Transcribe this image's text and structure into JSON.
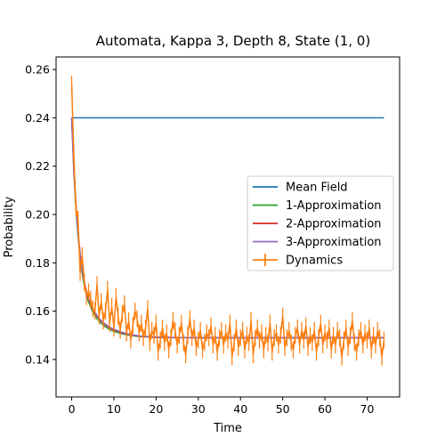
{
  "chart_data": {
    "type": "line",
    "title": "Automata, Kappa 3, Depth 8, State (1, 0)",
    "xlabel": "Time",
    "ylabel": "Probability",
    "xlim": [
      -3.7,
      77.7
    ],
    "ylim": [
      0.1245,
      0.2652
    ],
    "xticks": [
      0,
      10,
      20,
      30,
      40,
      50,
      60,
      70
    ],
    "yticks": [
      0.14,
      0.16,
      0.18,
      0.2,
      0.22,
      0.24,
      0.26
    ],
    "yticklabels": [
      "0.14",
      "0.16",
      "0.18",
      "0.20",
      "0.22",
      "0.24",
      "0.26"
    ],
    "legend_position": "right",
    "series": [
      {
        "name": "Mean Field",
        "color": "#1f77b4",
        "x": [
          0,
          74
        ],
        "y": [
          0.24,
          0.24
        ]
      },
      {
        "name": "1-Approximation",
        "color": "#2ca02c",
        "x": [
          0,
          0.5,
          1,
          1.5,
          2,
          2.5,
          3,
          3.5,
          4,
          5,
          6,
          7,
          8,
          9,
          10,
          12,
          14,
          16,
          18,
          20,
          25,
          30,
          35,
          40,
          50,
          60,
          74
        ],
        "y": [
          0.24,
          0.218,
          0.2025,
          0.191,
          0.182,
          0.1755,
          0.1705,
          0.1668,
          0.1638,
          0.1597,
          0.1569,
          0.1549,
          0.1535,
          0.1524,
          0.1516,
          0.1506,
          0.1499,
          0.1495,
          0.1493,
          0.1491,
          0.149,
          0.149,
          0.149,
          0.149,
          0.149,
          0.149,
          0.149
        ]
      },
      {
        "name": "2-Approximation",
        "color": "#d62728",
        "x": [
          0,
          0.5,
          1,
          1.5,
          2,
          2.5,
          3,
          3.5,
          4,
          5,
          6,
          7,
          8,
          9,
          10,
          12,
          14,
          16,
          18,
          20,
          25,
          30,
          35,
          40,
          50,
          60,
          74
        ],
        "y": [
          0.24,
          0.219,
          0.204,
          0.1925,
          0.1835,
          0.1768,
          0.1718,
          0.168,
          0.165,
          0.1608,
          0.1579,
          0.1558,
          0.1543,
          0.1531,
          0.1522,
          0.151,
          0.1502,
          0.1497,
          0.1494,
          0.1492,
          0.1491,
          0.149,
          0.149,
          0.149,
          0.149,
          0.149,
          0.149
        ]
      },
      {
        "name": "3-Approximation",
        "color": "#9467bd",
        "x": [
          0,
          0.5,
          1,
          1.5,
          2,
          2.5,
          3,
          3.5,
          4,
          5,
          6,
          7,
          8,
          9,
          10,
          12,
          14,
          16,
          18,
          20,
          25,
          30,
          35,
          40,
          50,
          60,
          74
        ],
        "y": [
          0.24,
          0.2195,
          0.2045,
          0.193,
          0.184,
          0.1772,
          0.1722,
          0.1684,
          0.1654,
          0.1612,
          0.1582,
          0.1561,
          0.1546,
          0.1534,
          0.1525,
          0.1512,
          0.1503,
          0.1498,
          0.1495,
          0.1493,
          0.1491,
          0.149,
          0.149,
          0.149,
          0.149,
          0.149,
          0.149
        ]
      },
      {
        "name": "Dynamics",
        "color": "#ff7f0e",
        "errorbars": true,
        "x": [
          0,
          0.5,
          1,
          1.5,
          2,
          2.5,
          3,
          3.5,
          4,
          4.5,
          5,
          5.5,
          6,
          6.5,
          7,
          7.5,
          8,
          8.5,
          9,
          9.5,
          10,
          10.5,
          11,
          11.5,
          12,
          12.5,
          13,
          13.5,
          14,
          14.5,
          15,
          15.5,
          16,
          16.5,
          17,
          17.5,
          18,
          18.5,
          19,
          19.5,
          20,
          20.5,
          21,
          21.5,
          22,
          22.5,
          23,
          23.5,
          24,
          24.5,
          25,
          25.5,
          26,
          26.5,
          27,
          27.5,
          28,
          28.5,
          29,
          29.5,
          30,
          30.5,
          31,
          31.5,
          32,
          32.5,
          33,
          33.5,
          34,
          34.5,
          35,
          35.5,
          36,
          36.5,
          37,
          37.5,
          38,
          38.5,
          39,
          39.5,
          40,
          40.5,
          41,
          41.5,
          42,
          42.5,
          43,
          43.5,
          44,
          44.5,
          45,
          45.5,
          46,
          46.5,
          47,
          47.5,
          48,
          48.5,
          49,
          49.5,
          50,
          50.5,
          51,
          51.5,
          52,
          52.5,
          53,
          53.5,
          54,
          54.5,
          55,
          55.5,
          56,
          56.5,
          57,
          57.5,
          58,
          58.5,
          59,
          59.5,
          60,
          60.5,
          61,
          61.5,
          62,
          62.5,
          63,
          63.5,
          64,
          64.5,
          65,
          65.5,
          66,
          66.5,
          67,
          67.5,
          68,
          68.5,
          69,
          69.5,
          70,
          70.5,
          71,
          71.5,
          72,
          72.5,
          73,
          73.5,
          74
        ],
        "y": [
          0.254,
          0.225,
          0.203,
          0.198,
          0.176,
          0.183,
          0.172,
          0.166,
          0.168,
          0.165,
          0.161,
          0.16,
          0.171,
          0.158,
          0.164,
          0.156,
          0.16,
          0.169,
          0.155,
          0.162,
          0.153,
          0.166,
          0.158,
          0.152,
          0.159,
          0.163,
          0.151,
          0.156,
          0.148,
          0.154,
          0.16,
          0.157,
          0.151,
          0.155,
          0.149,
          0.153,
          0.161,
          0.147,
          0.152,
          0.15,
          0.155,
          0.143,
          0.148,
          0.153,
          0.147,
          0.151,
          0.144,
          0.149,
          0.156,
          0.152,
          0.146,
          0.15,
          0.155,
          0.147,
          0.142,
          0.15,
          0.157,
          0.149,
          0.153,
          0.145,
          0.148,
          0.152,
          0.144,
          0.147,
          0.151,
          0.149,
          0.154,
          0.146,
          0.15,
          0.143,
          0.149,
          0.152,
          0.146,
          0.151,
          0.148,
          0.155,
          0.141,
          0.147,
          0.153,
          0.145,
          0.149,
          0.152,
          0.144,
          0.15,
          0.147,
          0.156,
          0.142,
          0.149,
          0.153,
          0.148,
          0.151,
          0.144,
          0.15,
          0.147,
          0.155,
          0.143,
          0.149,
          0.151,
          0.146,
          0.15,
          0.158,
          0.145,
          0.149,
          0.152,
          0.147,
          0.144,
          0.15,
          0.153,
          0.146,
          0.152,
          0.148,
          0.154,
          0.145,
          0.15,
          0.147,
          0.152,
          0.143,
          0.149,
          0.155,
          0.146,
          0.151,
          0.148,
          0.153,
          0.144,
          0.15,
          0.146,
          0.152,
          0.149,
          0.141,
          0.148,
          0.153,
          0.145,
          0.15,
          0.156,
          0.147,
          0.143,
          0.149,
          0.152,
          0.146,
          0.151,
          0.148,
          0.153,
          0.144,
          0.15,
          0.146,
          0.152,
          0.149,
          0.141,
          0.148
        ],
        "yerr": 0.0035
      }
    ]
  }
}
